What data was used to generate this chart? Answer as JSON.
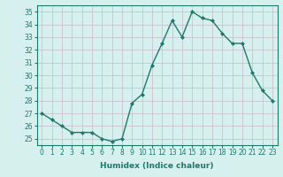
{
  "x": [
    0,
    1,
    2,
    3,
    4,
    5,
    6,
    7,
    8,
    9,
    10,
    11,
    12,
    13,
    14,
    15,
    16,
    17,
    18,
    19,
    20,
    21,
    22,
    23
  ],
  "y": [
    27,
    26.5,
    26,
    25.5,
    25.5,
    25.5,
    25,
    24.8,
    25,
    27.8,
    28.5,
    30.8,
    32.5,
    34.3,
    33,
    35,
    34.5,
    34.3,
    33.3,
    32.5,
    32.5,
    30.2,
    28.8,
    28
  ],
  "line_color": "#1a7a6e",
  "marker": "D",
  "marker_size": 2,
  "bg_color": "#d6f0ee",
  "grid_color": "#c8b8c8",
  "xlabel": "Humidex (Indice chaleur)",
  "ylim": [
    24.5,
    35.5
  ],
  "xlim": [
    -0.5,
    23.5
  ],
  "yticks": [
    25,
    26,
    27,
    28,
    29,
    30,
    31,
    32,
    33,
    34,
    35
  ],
  "xticks": [
    0,
    1,
    2,
    3,
    4,
    5,
    6,
    7,
    8,
    9,
    10,
    11,
    12,
    13,
    14,
    15,
    16,
    17,
    18,
    19,
    20,
    21,
    22,
    23
  ],
  "axis_color": "#1a7a6e",
  "tick_color": "#1a7a6e",
  "tick_fontsize": 5.5,
  "xlabel_fontsize": 6.5,
  "linewidth": 1.0
}
